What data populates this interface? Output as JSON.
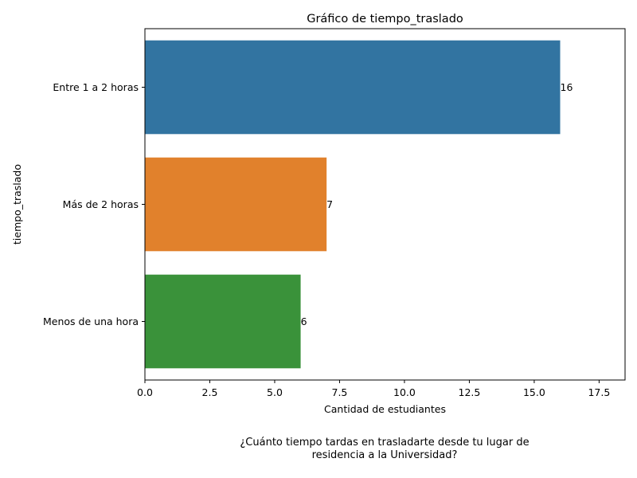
{
  "chart_data": {
    "type": "bar",
    "orientation": "horizontal",
    "title": "Gráfico de tiempo_traslado",
    "xlabel": "Cantidad de estudiantes",
    "ylabel": "tiempo_traslado",
    "categories": [
      "Entre 1 a 2 horas",
      "Más de 2 horas",
      "Menos de una hora"
    ],
    "values": [
      16,
      7,
      6
    ],
    "data_labels": [
      "16",
      "7",
      "6"
    ],
    "colors": [
      "#3274a1",
      "#e1812c",
      "#3a923a"
    ],
    "xlim": [
      0,
      18.5
    ],
    "xticks": [
      0,
      2.5,
      5,
      7.5,
      10,
      12.5,
      15,
      17.5
    ],
    "xtick_labels": [
      "0.0",
      "2.5",
      "5.0",
      "7.5",
      "10.0",
      "12.5",
      "15.0",
      "17.5"
    ],
    "grid": false,
    "legend": "none"
  },
  "caption": {
    "line1": "¿Cuánto tiempo tardas en trasladarte desde tu lugar de",
    "line2": "residencia a la Universidad?"
  }
}
